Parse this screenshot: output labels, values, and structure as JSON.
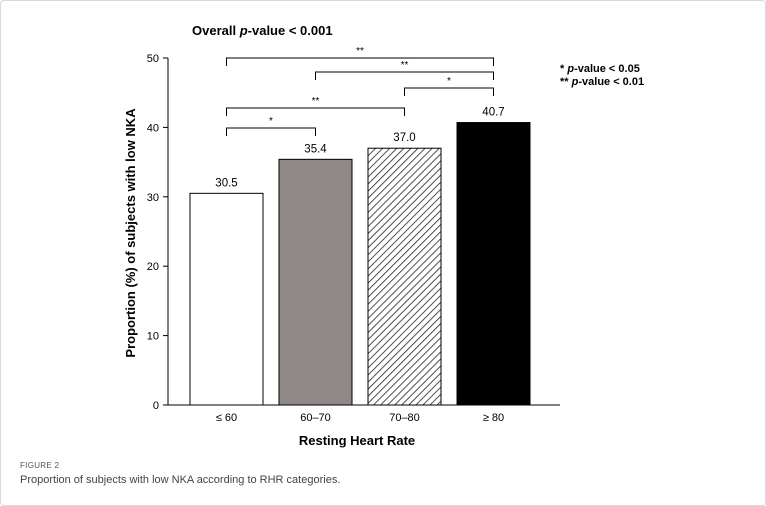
{
  "chart_data": {
    "type": "bar",
    "title_prefix": "Overall ",
    "title_italic": "p",
    "title_suffix": "-value < 0.001",
    "xlabel": "Resting Heart Rate",
    "ylabel": "Proportion (%) of subjects with low NKA",
    "categories": [
      "≤ 60",
      "60–70",
      "70–80",
      "≥ 80"
    ],
    "values": [
      30.5,
      35.4,
      37.0,
      40.7
    ],
    "value_labels": [
      "30.5",
      "35.4",
      "37.0",
      "40.7"
    ],
    "ylim": [
      0,
      50
    ],
    "yticks": [
      0,
      10,
      20,
      30,
      40,
      50
    ],
    "bar_fills": [
      "white",
      "gray",
      "hatch",
      "black"
    ],
    "colors": {
      "gray": "#8f8a88",
      "black": "#000000"
    },
    "significance": [
      {
        "from": 0,
        "to": 1,
        "label": "*"
      },
      {
        "from": 0,
        "to": 2,
        "label": "**"
      },
      {
        "from": 2,
        "to": 3,
        "label": "*"
      },
      {
        "from": 1,
        "to": 3,
        "label": "**"
      },
      {
        "from": 0,
        "to": 3,
        "label": "**"
      }
    ],
    "legend": [
      {
        "stars": "* ",
        "italic": "p",
        "text": "-value < 0.05"
      },
      {
        "stars": "**",
        "italic": "p",
        "text": "-value < 0.01"
      }
    ]
  },
  "caption": {
    "label": "FIGURE 2",
    "text": "Proportion of subjects with low NKA according to RHR categories."
  }
}
